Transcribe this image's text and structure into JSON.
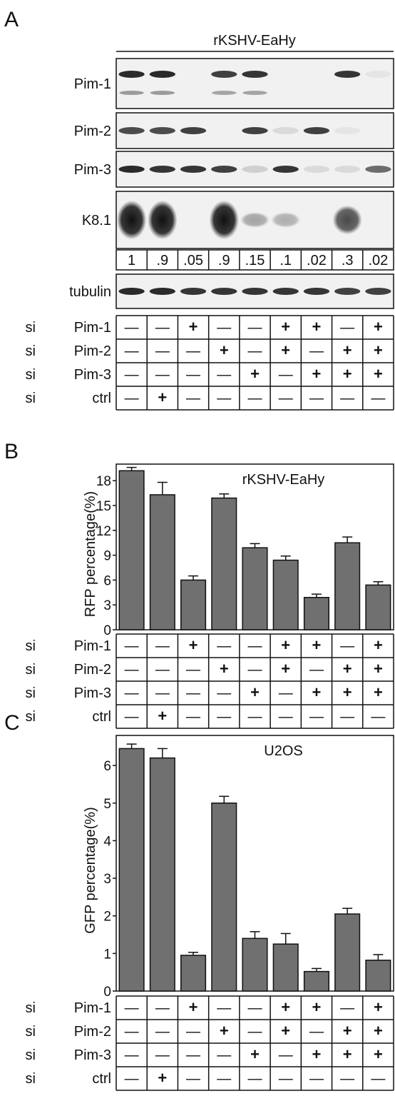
{
  "panel_labels": {
    "a": "A",
    "b": "B",
    "c": "C"
  },
  "blot": {
    "title": "rKSHV-EaHy",
    "rows": [
      {
        "label": "Pim-1",
        "bands": [
          0.9,
          0.9,
          0.0,
          0.8,
          0.85,
          0.0,
          0.0,
          0.85,
          0.05
        ],
        "secondary": [
          0.45,
          0.45,
          0.0,
          0.4,
          0.4,
          0.0,
          0.0,
          0.0,
          0.0
        ]
      },
      {
        "label": "Pim-2",
        "bands": [
          0.75,
          0.75,
          0.8,
          0.0,
          0.8,
          0.1,
          0.8,
          0.05,
          0.0
        ]
      },
      {
        "label": "Pim-3",
        "bands": [
          0.9,
          0.85,
          0.85,
          0.8,
          0.15,
          0.85,
          0.1,
          0.1,
          0.6
        ]
      },
      {
        "label": "K8.1",
        "bands": [
          1.0,
          1.0,
          0.0,
          1.0,
          0.35,
          0.3,
          0.0,
          0.75,
          0.0
        ]
      },
      {
        "label": "tubulin",
        "bands": [
          0.9,
          0.9,
          0.85,
          0.85,
          0.85,
          0.85,
          0.85,
          0.8,
          0.8
        ]
      }
    ],
    "quantification": [
      "1",
      ".9",
      ".05",
      ".9",
      ".15",
      ".1",
      ".02",
      ".3",
      ".02"
    ]
  },
  "design": {
    "row_labels": [
      [
        "si",
        "Pim-1"
      ],
      [
        "si",
        "Pim-2"
      ],
      [
        "si",
        "Pim-3"
      ],
      [
        "si",
        "ctrl"
      ]
    ],
    "rows": [
      [
        "—",
        "—",
        "+",
        "—",
        "—",
        "+",
        "+",
        "—",
        "+"
      ],
      [
        "—",
        "—",
        "—",
        "+",
        "—",
        "+",
        "—",
        "+",
        "+"
      ],
      [
        "—",
        "—",
        "—",
        "—",
        "+",
        "—",
        "+",
        "+",
        "+"
      ],
      [
        "—",
        "+",
        "—",
        "—",
        "—",
        "—",
        "—",
        "—",
        "—"
      ]
    ]
  },
  "chart_data": [
    {
      "type": "bar",
      "title": "rKSHV-EaHy",
      "ylabel": "RFP  percentage(%)",
      "ylim": [
        0,
        20
      ],
      "yticks": [
        "0",
        "3",
        "6",
        "9",
        "12",
        "15",
        "18"
      ],
      "values": [
        19.2,
        16.3,
        6.0,
        15.9,
        9.9,
        8.4,
        3.9,
        10.5,
        5.4
      ],
      "errors": [
        0.4,
        1.5,
        0.5,
        0.5,
        0.5,
        0.5,
        0.4,
        0.7,
        0.4
      ],
      "grid": false,
      "bar_color": "#707070"
    },
    {
      "type": "bar",
      "title": "U2OS",
      "ylabel": "GFP  percentage(%)",
      "ylim": [
        0,
        6.8
      ],
      "yticks": [
        "0",
        "1",
        "2",
        "3",
        "4",
        "5",
        "6"
      ],
      "values": [
        6.45,
        6.2,
        0.95,
        5.0,
        1.4,
        1.25,
        0.52,
        2.05,
        0.82
      ],
      "errors": [
        0.12,
        0.25,
        0.08,
        0.18,
        0.18,
        0.28,
        0.08,
        0.15,
        0.15
      ],
      "grid": false,
      "bar_color": "#707070"
    }
  ]
}
